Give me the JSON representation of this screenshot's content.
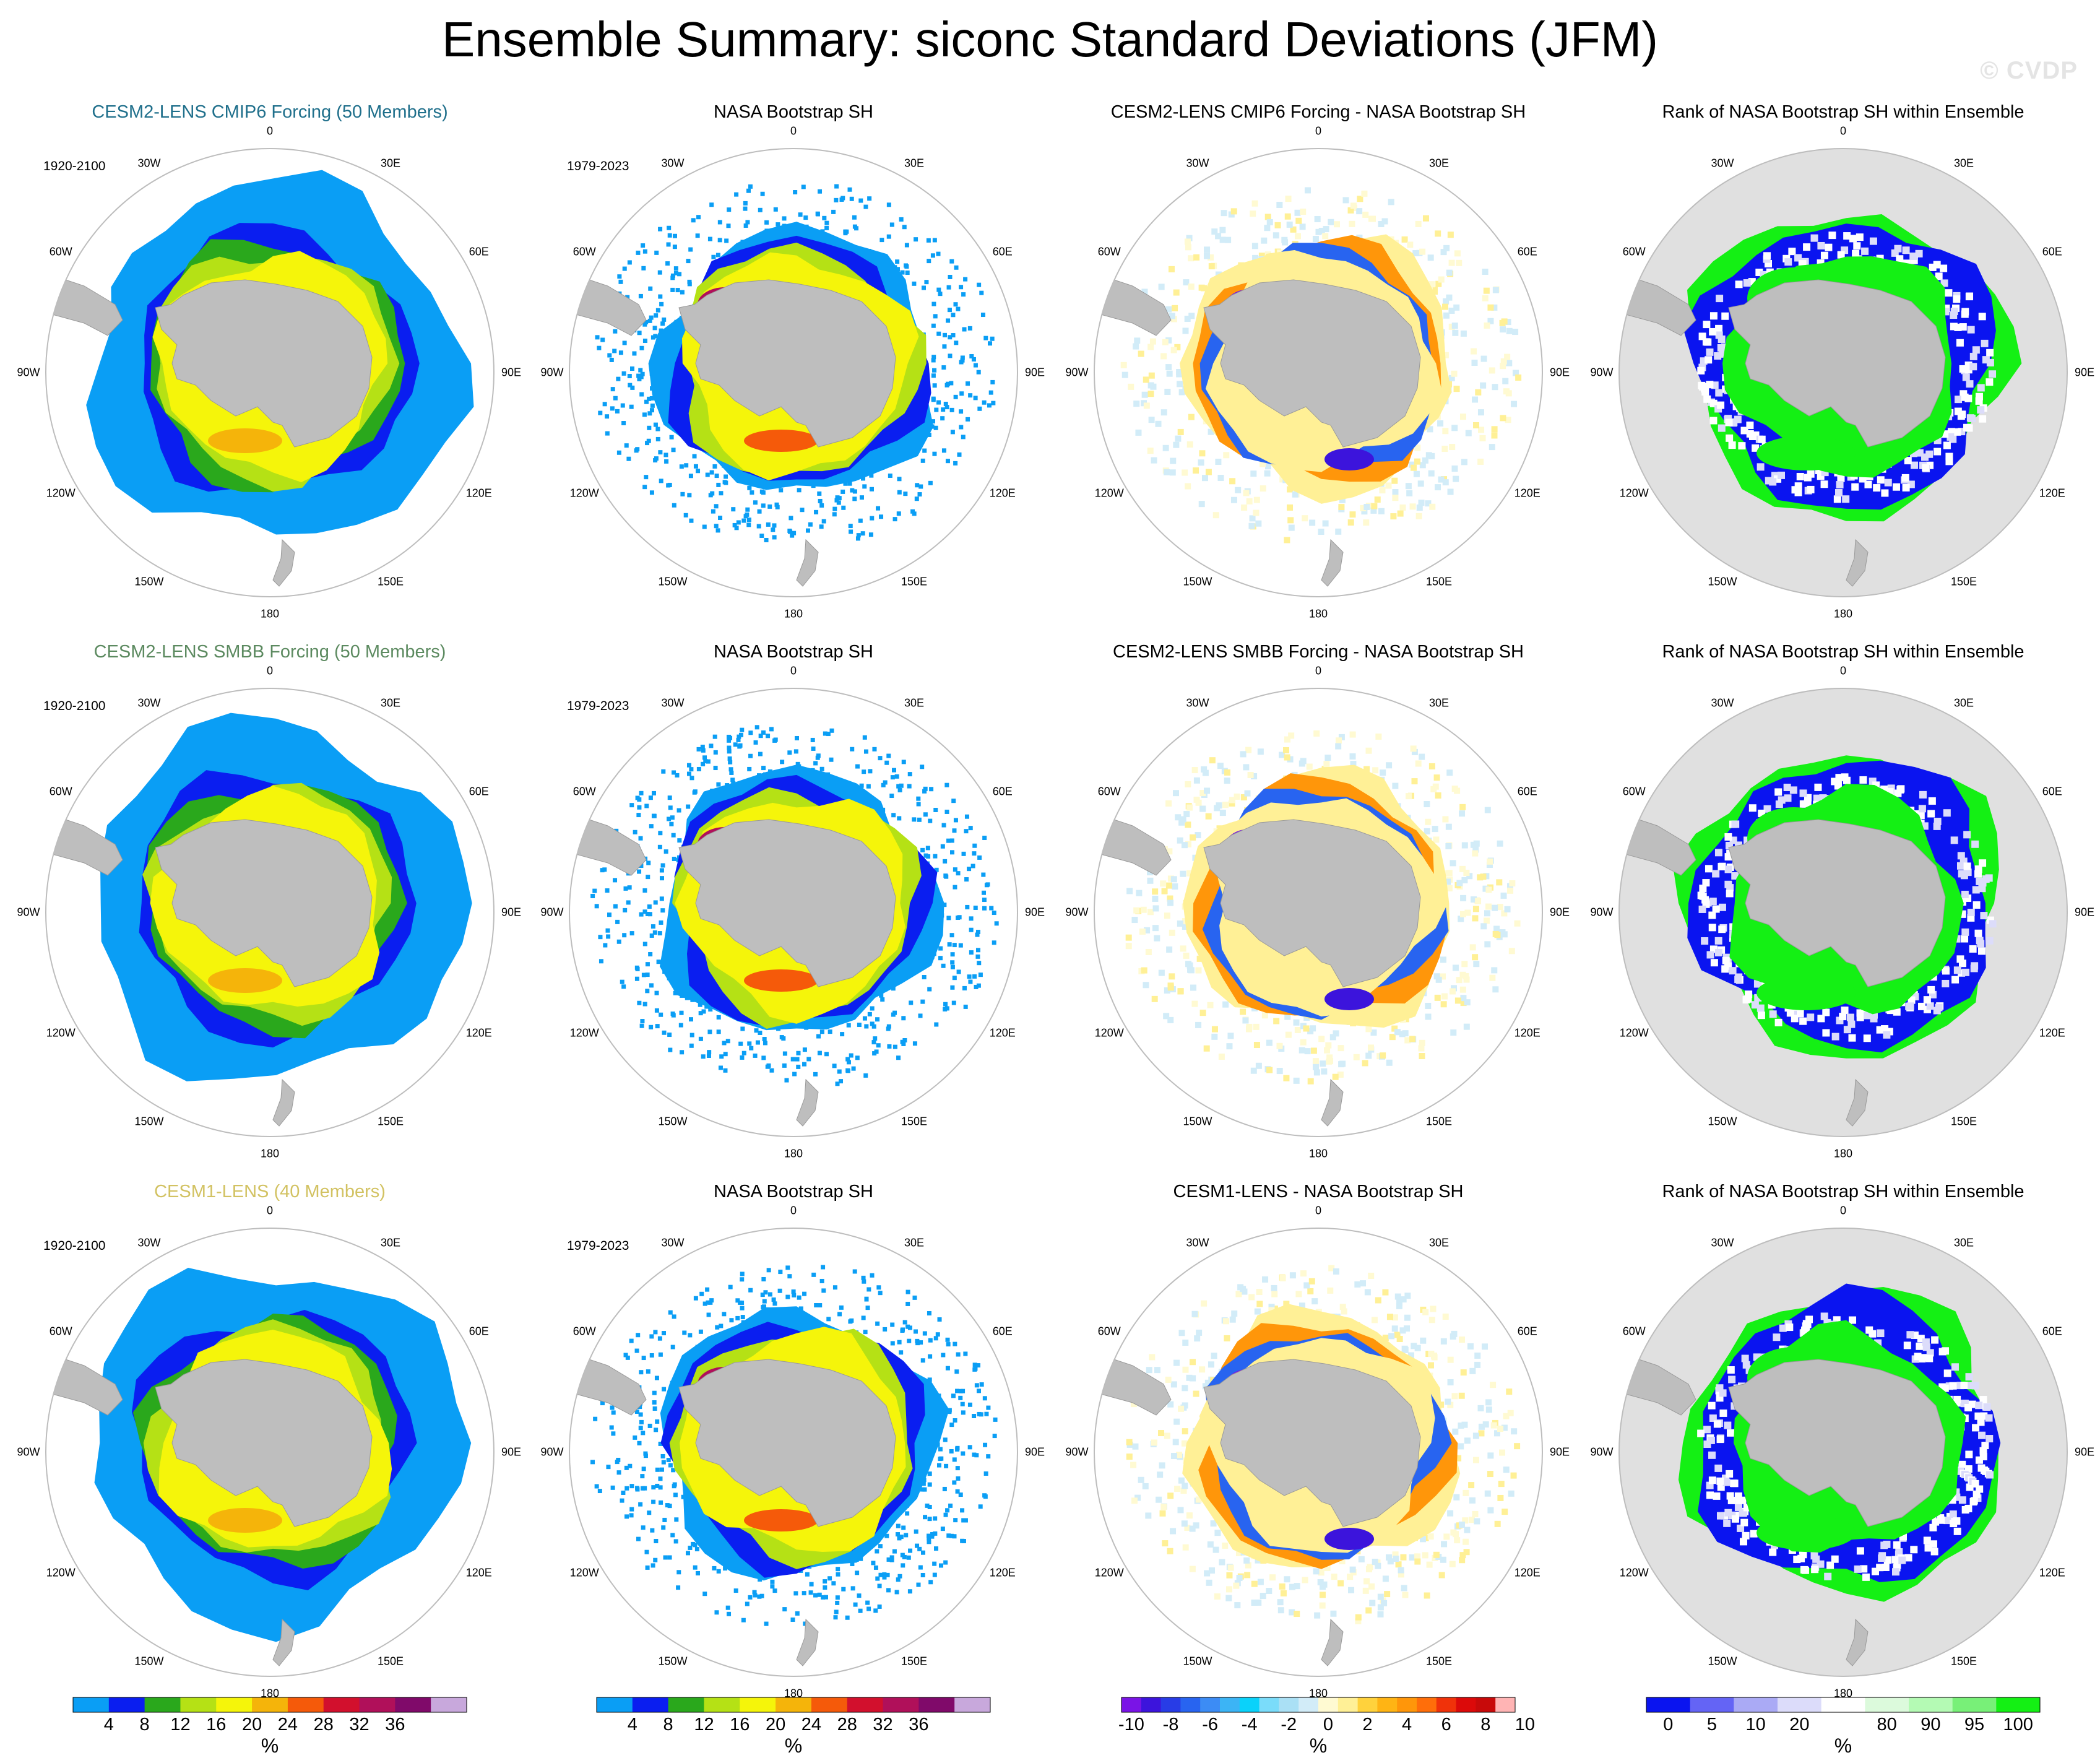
{
  "title": "Ensemble Summary: siconc Standard Deviations (JFM)",
  "watermark": "© CVDP",
  "lon_labels": [
    "0",
    "30E",
    "60E",
    "90E",
    "120E",
    "150E",
    "180",
    "150W",
    "120W",
    "90W",
    "60W",
    "30W"
  ],
  "rows": [
    {
      "model_title": "CESM2-LENS CMIP6 Forcing (50 Members)",
      "model_title_color": "#1f6f8b",
      "model_period": "1920-2100",
      "obs_title": "NASA Bootstrap SH",
      "obs_period": "1979-2023",
      "diff_title": "CESM2-LENS CMIP6 Forcing - NASA Bootstrap SH",
      "rank_title": "Rank of NASA Bootstrap SH within Ensemble"
    },
    {
      "model_title": "CESM2-LENS SMBB Forcing (50 Members)",
      "model_title_color": "#5c8a60",
      "model_period": "1920-2100",
      "obs_title": "NASA Bootstrap SH",
      "obs_period": "1979-2023",
      "diff_title": "CESM2-LENS SMBB Forcing - NASA Bootstrap SH",
      "rank_title": "Rank of NASA Bootstrap SH within Ensemble"
    },
    {
      "model_title": "CESM1-LENS (40 Members)",
      "model_title_color": "#d2c262",
      "model_period": "1920-2100",
      "obs_title": "NASA Bootstrap SH",
      "obs_period": "1979-2023",
      "diff_title": "CESM1-LENS - NASA Bootstrap SH",
      "rank_title": "Rank of NASA Bootstrap SH within Ensemble"
    }
  ],
  "colorbars": {
    "stdev": {
      "colors": [
        "#0a9ef5",
        "#0a1ef0",
        "#2aa81c",
        "#b5e115",
        "#f5f50a",
        "#f5b40a",
        "#f55a0a",
        "#d2102d",
        "#b0105a",
        "#800a6a",
        "#c8a8dc"
      ],
      "labels": [
        "4",
        "8",
        "12",
        "16",
        "20",
        "24",
        "28",
        "32",
        "36"
      ],
      "units": "%"
    },
    "diff": {
      "colors": [
        "#7a14e6",
        "#3c14dc",
        "#283ce6",
        "#2864f0",
        "#3c8cf5",
        "#3cb4f5",
        "#0ad2fa",
        "#7adcfa",
        "#aae0f5",
        "#d2ecf8",
        "#fffad2",
        "#fff096",
        "#ffd23c",
        "#ffb414",
        "#ff960a",
        "#ff6e0a",
        "#f0320a",
        "#dc0a0a",
        "#c80a0a",
        "#ffb4b4"
      ],
      "labels": [
        "-10",
        "-8",
        "-6",
        "-4",
        "-2",
        "0",
        "2",
        "4",
        "6",
        "8",
        "10"
      ],
      "units": "%"
    },
    "rank": {
      "colors": [
        "#0a14f0",
        "#6464f5",
        "#aaaaf5",
        "#dcdcfa",
        "#ffffff",
        "#dcfadc",
        "#b4fab4",
        "#78f078",
        "#14f014"
      ],
      "labels": [
        "0",
        "5",
        "10",
        "20",
        "80",
        "90",
        "95",
        "100"
      ],
      "units": "%"
    }
  },
  "chart_data": {
    "type": "heatmap",
    "variable": "siconc",
    "season": "JFM",
    "statistic": "Standard Deviations",
    "projection": "polar stereographic, Southern Hemisphere",
    "rows": [
      "CESM2-LENS CMIP6 Forcing (50 Members)",
      "CESM2-LENS SMBB Forcing (50 Members)",
      "CESM1-LENS (40 Members)"
    ],
    "columns": [
      "Ensemble",
      "NASA Bootstrap SH",
      "Ensemble - NASA Bootstrap SH",
      "Rank of NASA Bootstrap SH within Ensemble"
    ],
    "stdev_levels": [
      4,
      8,
      12,
      16,
      20,
      24,
      28,
      32,
      36
    ],
    "diff_levels": [
      -10,
      -8,
      -6,
      -4,
      -2,
      0,
      2,
      4,
      6,
      8,
      10
    ],
    "rank_levels": [
      0,
      5,
      10,
      20,
      80,
      90,
      95,
      100
    ],
    "units": "%"
  }
}
